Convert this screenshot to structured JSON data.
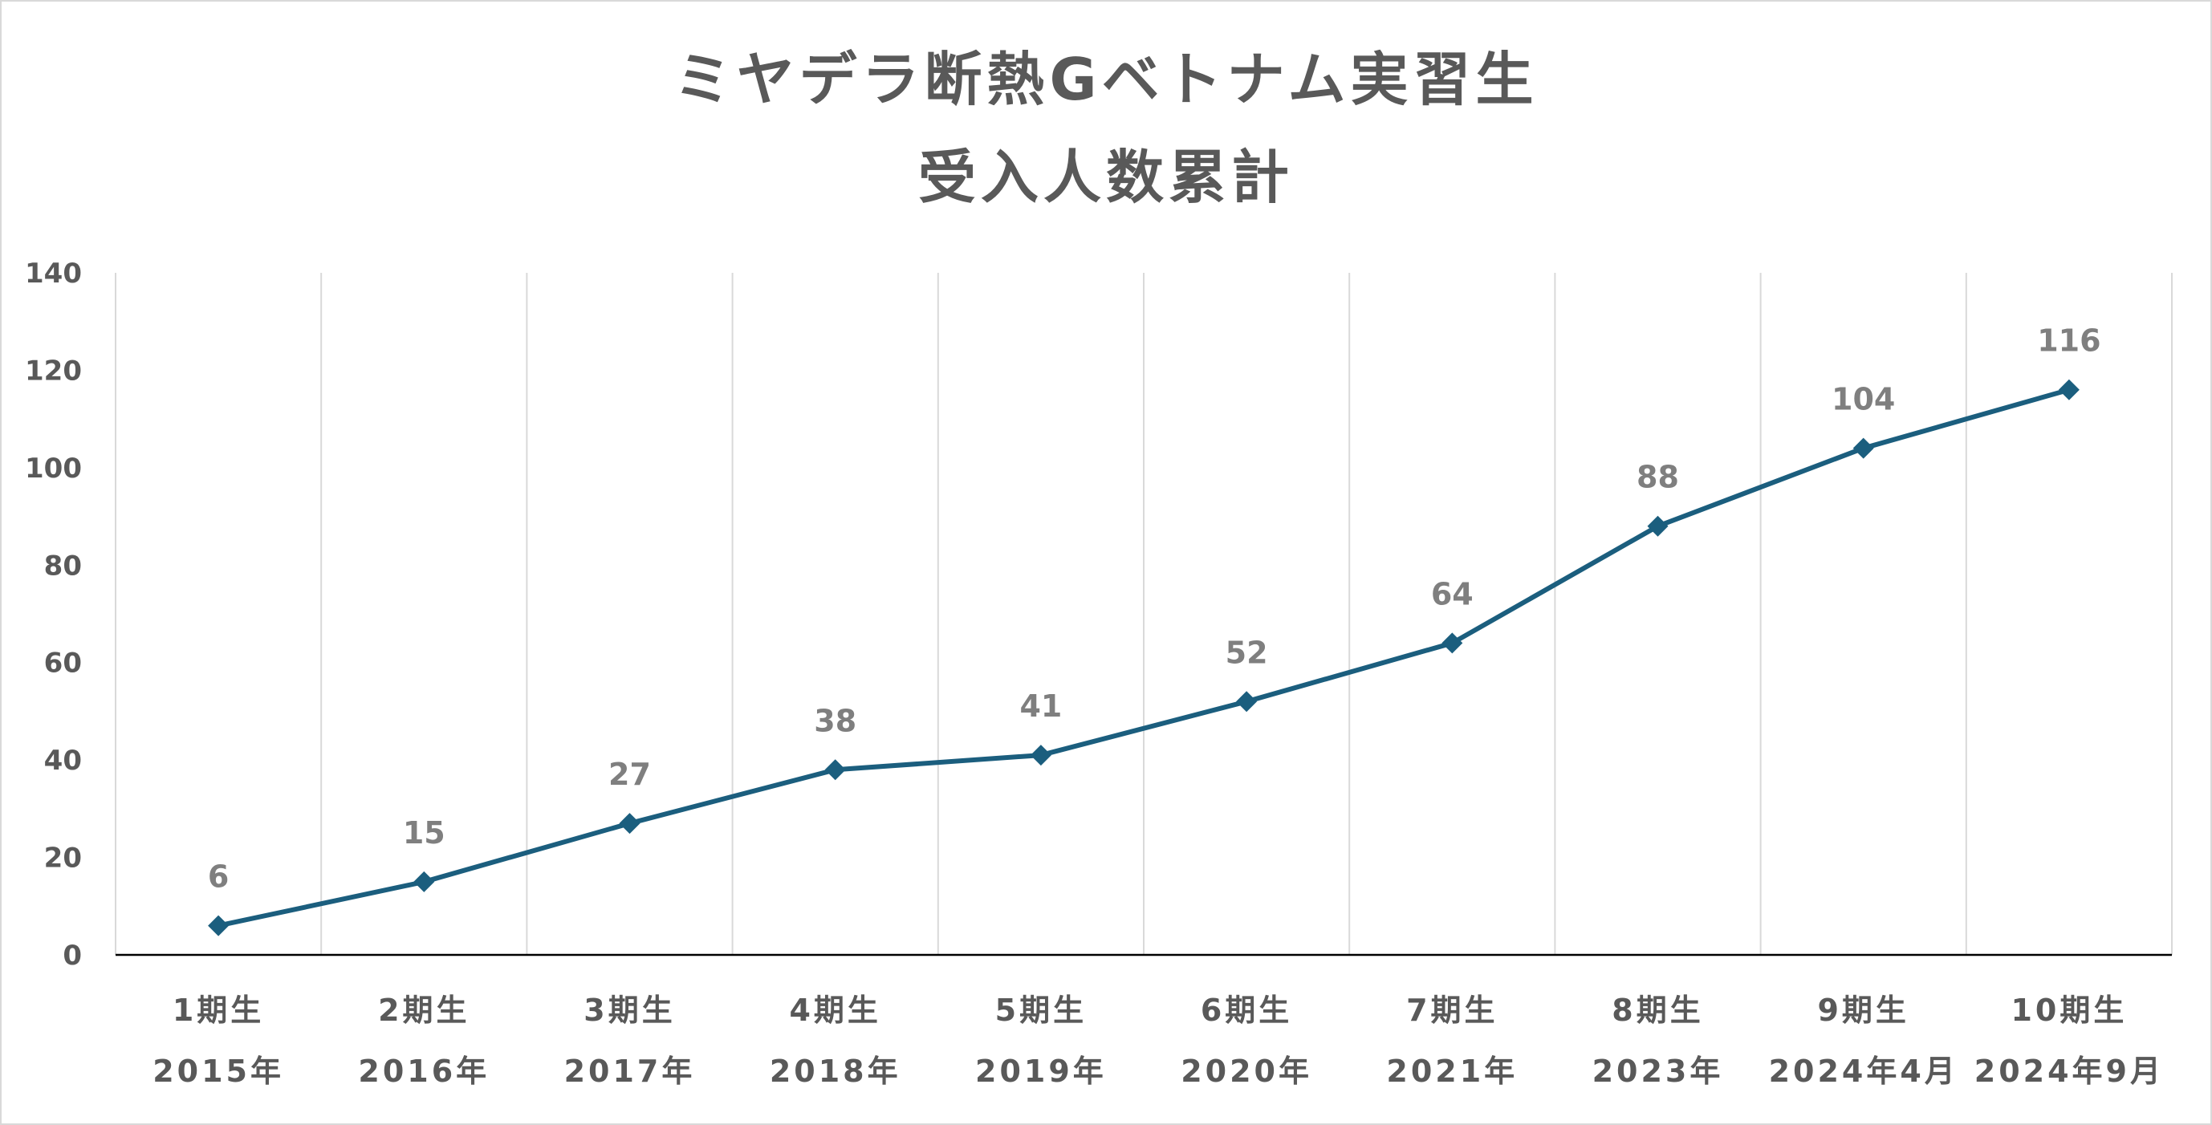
{
  "chart": {
    "title_line1": "ミヤデラ断熱Gベトナム実習生",
    "title_line2": "受入人数累計"
  },
  "colors": {
    "line": "#1b5e7e",
    "gridline": "#d9d9d9",
    "axis": "#000000",
    "text": "#595959",
    "data_label": "#7f7f7f"
  },
  "chart_data": {
    "type": "line",
    "title": "ミヤデラ断熱Gベトナム実習生 受入人数累計",
    "categories": [
      [
        "1期生",
        "2015年"
      ],
      [
        "2期生",
        "2016年"
      ],
      [
        "3期生",
        "2017年"
      ],
      [
        "4期生",
        "2018年"
      ],
      [
        "5期生",
        "2019年"
      ],
      [
        "6期生",
        "2020年"
      ],
      [
        "7期生",
        "2021年"
      ],
      [
        "8期生",
        "2023年"
      ],
      [
        "9期生",
        "2024年4月"
      ],
      [
        "10期生",
        "2024年9月"
      ]
    ],
    "values": [
      6,
      15,
      27,
      38,
      41,
      52,
      64,
      88,
      104,
      116
    ],
    "ylim": [
      0,
      140
    ],
    "yticks": [
      0,
      20,
      40,
      60,
      80,
      100,
      120,
      140
    ],
    "marker": "diamond",
    "data_labels": true,
    "grid": "vertical",
    "legend": "none"
  }
}
